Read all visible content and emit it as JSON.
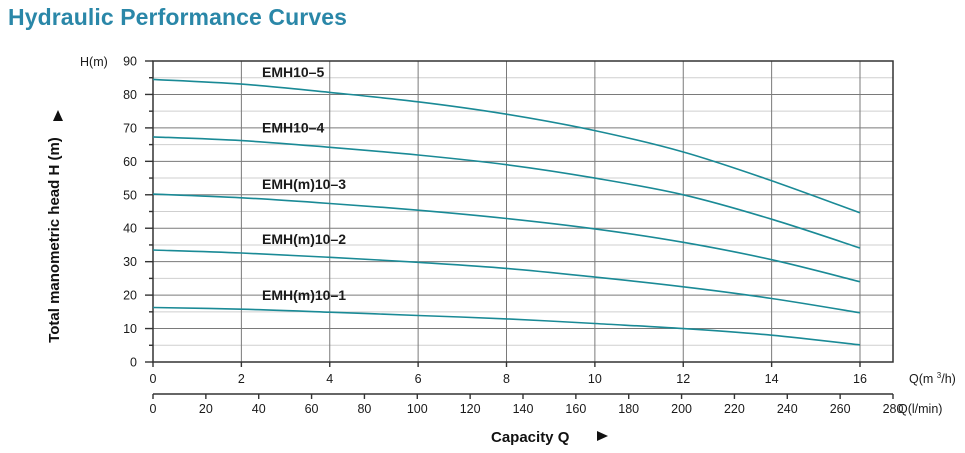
{
  "header": {
    "title": "Hydraulic Performance Curves"
  },
  "colors": {
    "title": "#2a87a8",
    "curve": "#1a8a96",
    "grid_major": "#7a7a7a",
    "grid_minor": "#cfcfcf",
    "frame": "#333333"
  },
  "chart_data": {
    "type": "line",
    "title": "Hydraulic Performance Curves",
    "xlabel": "Capacity Q",
    "xlabel_arrow": "►",
    "ylabel": "Total manometric head H (m)",
    "ylabel_arrow": "►",
    "y_unit": "H(m)",
    "x_unit": "Q(m³/h)",
    "x2_unit": "Q(l/min)",
    "xlim": [
      0,
      16.8
    ],
    "ylim": [
      0,
      90
    ],
    "x_ticks": [
      0,
      2,
      4,
      6,
      8,
      10,
      12,
      14,
      16
    ],
    "x_tick_labels": [
      "0",
      "2",
      "4",
      "6",
      "8",
      "10",
      "12",
      "14",
      "16"
    ],
    "x2_ticks": [
      0,
      20,
      40,
      60,
      80,
      100,
      120,
      140,
      160,
      180,
      200,
      220,
      240,
      260,
      280
    ],
    "x2_tick_labels": [
      "0",
      "20",
      "40",
      "60",
      "80",
      "100",
      "120",
      "140",
      "160",
      "180",
      "200",
      "220",
      "240",
      "260",
      "280"
    ],
    "y_ticks": [
      0,
      10,
      20,
      30,
      40,
      50,
      60,
      70,
      80,
      90
    ],
    "y_tick_labels": [
      "0",
      "10",
      "20",
      "30",
      "40",
      "50",
      "60",
      "70",
      "80",
      "90"
    ],
    "y_minor_step": 5,
    "grid": true,
    "x": [
      0,
      2,
      4,
      6,
      8,
      10,
      12,
      14,
      16
    ],
    "series": [
      {
        "name": "EMH10-5",
        "label": "EMH10–5",
        "values": [
          84.5,
          83.1,
          80.6,
          77.8,
          74.1,
          69.2,
          62.8,
          54.2,
          44.6
        ]
      },
      {
        "name": "EMH10-4",
        "label": "EMH10–4",
        "values": [
          67.3,
          66.2,
          64.2,
          61.9,
          59.0,
          55.0,
          50.0,
          42.7,
          34.1
        ]
      },
      {
        "name": "EMH(m)10-3",
        "label": "EMH(m)10–3",
        "values": [
          50.2,
          49.1,
          47.4,
          45.4,
          42.9,
          39.8,
          35.8,
          30.6,
          24.0
        ]
      },
      {
        "name": "EMH(m)10-2",
        "label": "EMH(m)10–2",
        "values": [
          33.5,
          32.6,
          31.3,
          29.8,
          28.0,
          25.4,
          22.5,
          19.0,
          14.7
        ]
      },
      {
        "name": "EMH(m)10-1",
        "label": "EMH(m)10–1",
        "values": [
          16.3,
          15.8,
          14.9,
          13.9,
          12.9,
          11.5,
          10.0,
          8.0,
          5.1
        ]
      }
    ]
  }
}
